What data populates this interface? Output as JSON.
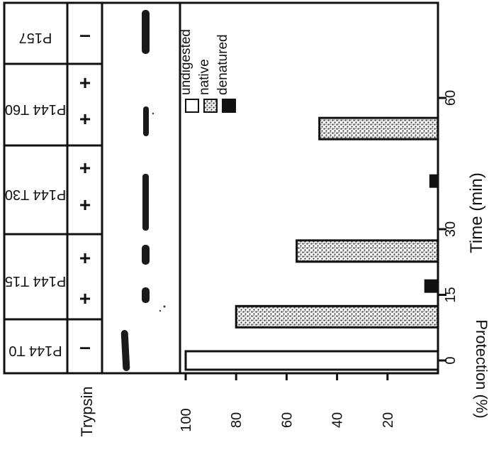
{
  "chart_data": {
    "type": "bar",
    "orientation": "rotated-90-clockwise",
    "xlabel": "Time (min)",
    "ylabel": "Protection (%)",
    "x_ticks": [
      0,
      15,
      30,
      60
    ],
    "y_ticks": [
      100,
      80,
      60,
      40,
      20
    ],
    "y_tick_labels": [
      "100",
      "80",
      "60",
      "40",
      "20"
    ],
    "ylim": [
      0,
      100
    ],
    "legend": {
      "placement": "top-right",
      "entries": [
        {
          "label": "undigested",
          "style": "open"
        },
        {
          "label": "native",
          "style": "stippled"
        },
        {
          "label": "denatured",
          "style": "solid"
        }
      ]
    },
    "series": [
      {
        "name": "undigested",
        "style": "open",
        "x": [
          0
        ],
        "values": [
          100
        ]
      },
      {
        "name": "native",
        "style": "stippled",
        "x": [
          10,
          25,
          53
        ],
        "values": [
          80,
          56,
          47
        ]
      },
      {
        "name": "denatured",
        "style": "solid",
        "x": [
          17,
          41
        ],
        "values": [
          5,
          3
        ]
      }
    ],
    "gel": {
      "row_label": "Trypsin",
      "lanes": [
        {
          "label": "P144 T0",
          "trypsin": [
            "–"
          ]
        },
        {
          "label": "P144 T15",
          "trypsin": [
            "+",
            "+"
          ]
        },
        {
          "label": "P144 T30",
          "trypsin": [
            "+",
            "+"
          ]
        },
        {
          "label": "P144 T60",
          "trypsin": [
            "+",
            "+"
          ]
        },
        {
          "label": "P157",
          "trypsin": [
            "–"
          ]
        }
      ]
    },
    "colors": {
      "ink": "#111111",
      "stipple": "#555555",
      "background": "#ffffff"
    }
  }
}
